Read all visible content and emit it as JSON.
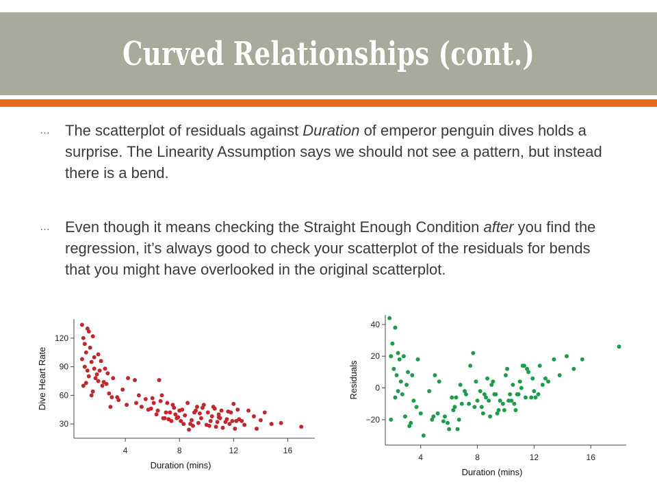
{
  "slide": {
    "title": "Curved Relationships (cont.)",
    "bullets": [
      {
        "marker": "…",
        "parts": [
          {
            "text": "The scatterplot of residuals against ",
            "italic": false
          },
          {
            "text": "Duration",
            "italic": true
          },
          {
            "text": " of emperor penguin dives holds a surprise.  The Linearity Assumption says we should not see a pattern, but instead there is a bend.",
            "italic": false
          }
        ]
      },
      {
        "marker": "…",
        "parts": [
          {
            "text": "Even though it means checking the Straight Enough Condition ",
            "italic": false
          },
          {
            "text": "after",
            "italic": true
          },
          {
            "text": " you find the regression, it’s always good to check your scatterplot of the residuals for bends that you might have overlooked in the original scatterplot.",
            "italic": false
          }
        ]
      }
    ],
    "colors": {
      "title_bar": "#a6ab9b",
      "accent_rule": "#e46c1c",
      "heart_rate_points": "#c0282d",
      "residual_points": "#1e9b4b"
    }
  },
  "chart_data": [
    {
      "type": "scatter",
      "xlabel": "Duration (mins)",
      "ylabel": "Dive Heart Rate",
      "xlim": [
        0.2,
        18
      ],
      "ylim": [
        15,
        140
      ],
      "xticks": [
        4,
        8,
        12,
        16
      ],
      "yticks": [
        30,
        60,
        90,
        120
      ],
      "grid": false,
      "series": [
        {
          "color": "#c0282d",
          "x": [
            0.8,
            1.2,
            0.9,
            1.3,
            1.0,
            1.6,
            1.1,
            1.4,
            0.8,
            1.7,
            1.0,
            2.0,
            1.5,
            1.2,
            1.9,
            2.2,
            1.8,
            0.9,
            2.5,
            2.0,
            1.3,
            2.7,
            2.3,
            1.6,
            3.1,
            2.8,
            1.1,
            3.4,
            2.1,
            3.8,
            1.5,
            2.6,
            4.1,
            2.9,
            4.7,
            3.5,
            4.8,
            5.2,
            5.9,
            6.3,
            6.0,
            6.8,
            7.1,
            7.3,
            7.6,
            6.5,
            6.7,
            7.9,
            8.2,
            8.6,
            7.7,
            8.9,
            9.2,
            9.5,
            8.1,
            9.8,
            10.1,
            10.3,
            10.6,
            10.9,
            11.1,
            11.4,
            11.7,
            12.0,
            12.3,
            8.4,
            9.0,
            9.6,
            10.0,
            10.4,
            10.8,
            11.2,
            11.6,
            12.4,
            12.8,
            13.1,
            13.5,
            14.0,
            14.3,
            14.8,
            15.5,
            17.0,
            5.5,
            6.1,
            7.4,
            8.8,
            9.3,
            10.7,
            11.5,
            12.1,
            4.2,
            5.0,
            5.7,
            7.0,
            8.3,
            9.7,
            10.2,
            11.8,
            12.6,
            13.7,
            3.0,
            2.4,
            1.7,
            6.9,
            7.8,
            8.0,
            9.1,
            10.5,
            11.0,
            11.9,
            7.5,
            6.4,
            7.2,
            9.4,
            10.9,
            12.2,
            8.7,
            6.6
          ],
          "y": [
            134,
            130,
            120,
            127,
            114,
            122,
            105,
            110,
            98,
            100,
            90,
            103,
            95,
            86,
            82,
            96,
            78,
            70,
            88,
            75,
            80,
            83,
            70,
            64,
            78,
            62,
            73,
            58,
            86,
            66,
            60,
            72,
            50,
            48,
            76,
            55,
            52,
            48,
            46,
            40,
            57,
            36,
            52,
            42,
            47,
            76,
            60,
            37,
            45,
            52,
            40,
            34,
            44,
            41,
            33,
            50,
            42,
            33,
            46,
            37,
            44,
            32,
            30,
            51,
            45,
            39,
            28,
            36,
            29,
            38,
            32,
            26,
            43,
            35,
            29,
            44,
            38,
            34,
            42,
            30,
            31,
            27,
            56,
            52,
            33,
            30,
            48,
            27,
            35,
            25,
            78,
            60,
            45,
            42,
            30,
            47,
            28,
            42,
            33,
            25,
            58,
            74,
            88,
            36,
            36,
            44,
            42,
            48,
            36,
            33,
            50,
            44,
            35,
            31,
            40,
            33,
            24,
            54
          ]
        }
      ]
    },
    {
      "type": "scatter",
      "xlabel": "Duration (mins)",
      "ylabel": "Residuals",
      "xlim": [
        1.5,
        18.5
      ],
      "ylim": [
        -36,
        46
      ],
      "xticks": [
        4,
        8,
        12,
        16
      ],
      "yticks": [
        40,
        20,
        0,
        -20
      ],
      "ytick_labels": [
        "40",
        "20",
        "0",
        "−20"
      ],
      "grid": false,
      "series": [
        {
          "color": "#1e9b4b",
          "x": [
            1.8,
            2.2,
            2.0,
            1.9,
            2.5,
            2.1,
            2.8,
            2.3,
            2.6,
            3.1,
            2.4,
            3.4,
            2.2,
            3.7,
            2.9,
            3.0,
            1.9,
            2.7,
            3.5,
            4.2,
            3.2,
            4.0,
            2.4,
            4.8,
            3.3,
            5.3,
            5.0,
            4.9,
            5.6,
            5.9,
            6.3,
            6.0,
            6.5,
            6.9,
            7.2,
            6.7,
            7.5,
            7.7,
            6.4,
            8.0,
            7.9,
            8.4,
            8.2,
            8.7,
            8.3,
            8.9,
            9.2,
            8.6,
            9.5,
            9.0,
            9.8,
            9.3,
            10.0,
            9.6,
            10.2,
            10.5,
            10.1,
            10.8,
            10.4,
            11.0,
            10.6,
            11.3,
            10.9,
            11.6,
            11.2,
            11.8,
            12.1,
            11.5,
            12.3,
            12.6,
            13.0,
            13.4,
            13.8,
            14.3,
            14.8,
            15.4,
            18.0,
            7.1,
            6.2,
            8.8,
            9.9,
            10.7,
            11.4,
            12.0,
            12.8,
            5.2,
            4.6,
            6.8,
            7.4,
            8.5,
            9.4,
            10.3,
            11.1,
            11.9,
            5.7,
            6.6,
            7.8,
            9.1,
            12.4,
            3.8
          ],
          "y": [
            44,
            38,
            28,
            20,
            18,
            12,
            20,
            8,
            4,
            10,
            -2,
            8,
            -6,
            -12,
            -18,
            2,
            -20,
            -4,
            -8,
            -30,
            -24,
            -16,
            22,
            -20,
            -22,
            4,
            8,
            -18,
            -21,
            -22,
            -14,
            -26,
            -6,
            -10,
            -4,
            -20,
            14,
            22,
            -12,
            -8,
            4,
            -16,
            -2,
            6,
            -12,
            -18,
            -4,
            -6,
            -14,
            2,
            -10,
            -4,
            8,
            -8,
            -8,
            2,
            12,
            -4,
            -8,
            4,
            -10,
            14,
            -4,
            10,
            14,
            -6,
            -6,
            12,
            -4,
            2,
            4,
            18,
            8,
            20,
            12,
            18,
            26,
            -2,
            -6,
            -8,
            -14,
            -14,
            -6,
            -2,
            6,
            -16,
            -2,
            2,
            -10,
            -4,
            -16,
            -4,
            0,
            6,
            -18,
            -26,
            -12,
            4,
            14,
            18
          ]
        }
      ]
    }
  ]
}
